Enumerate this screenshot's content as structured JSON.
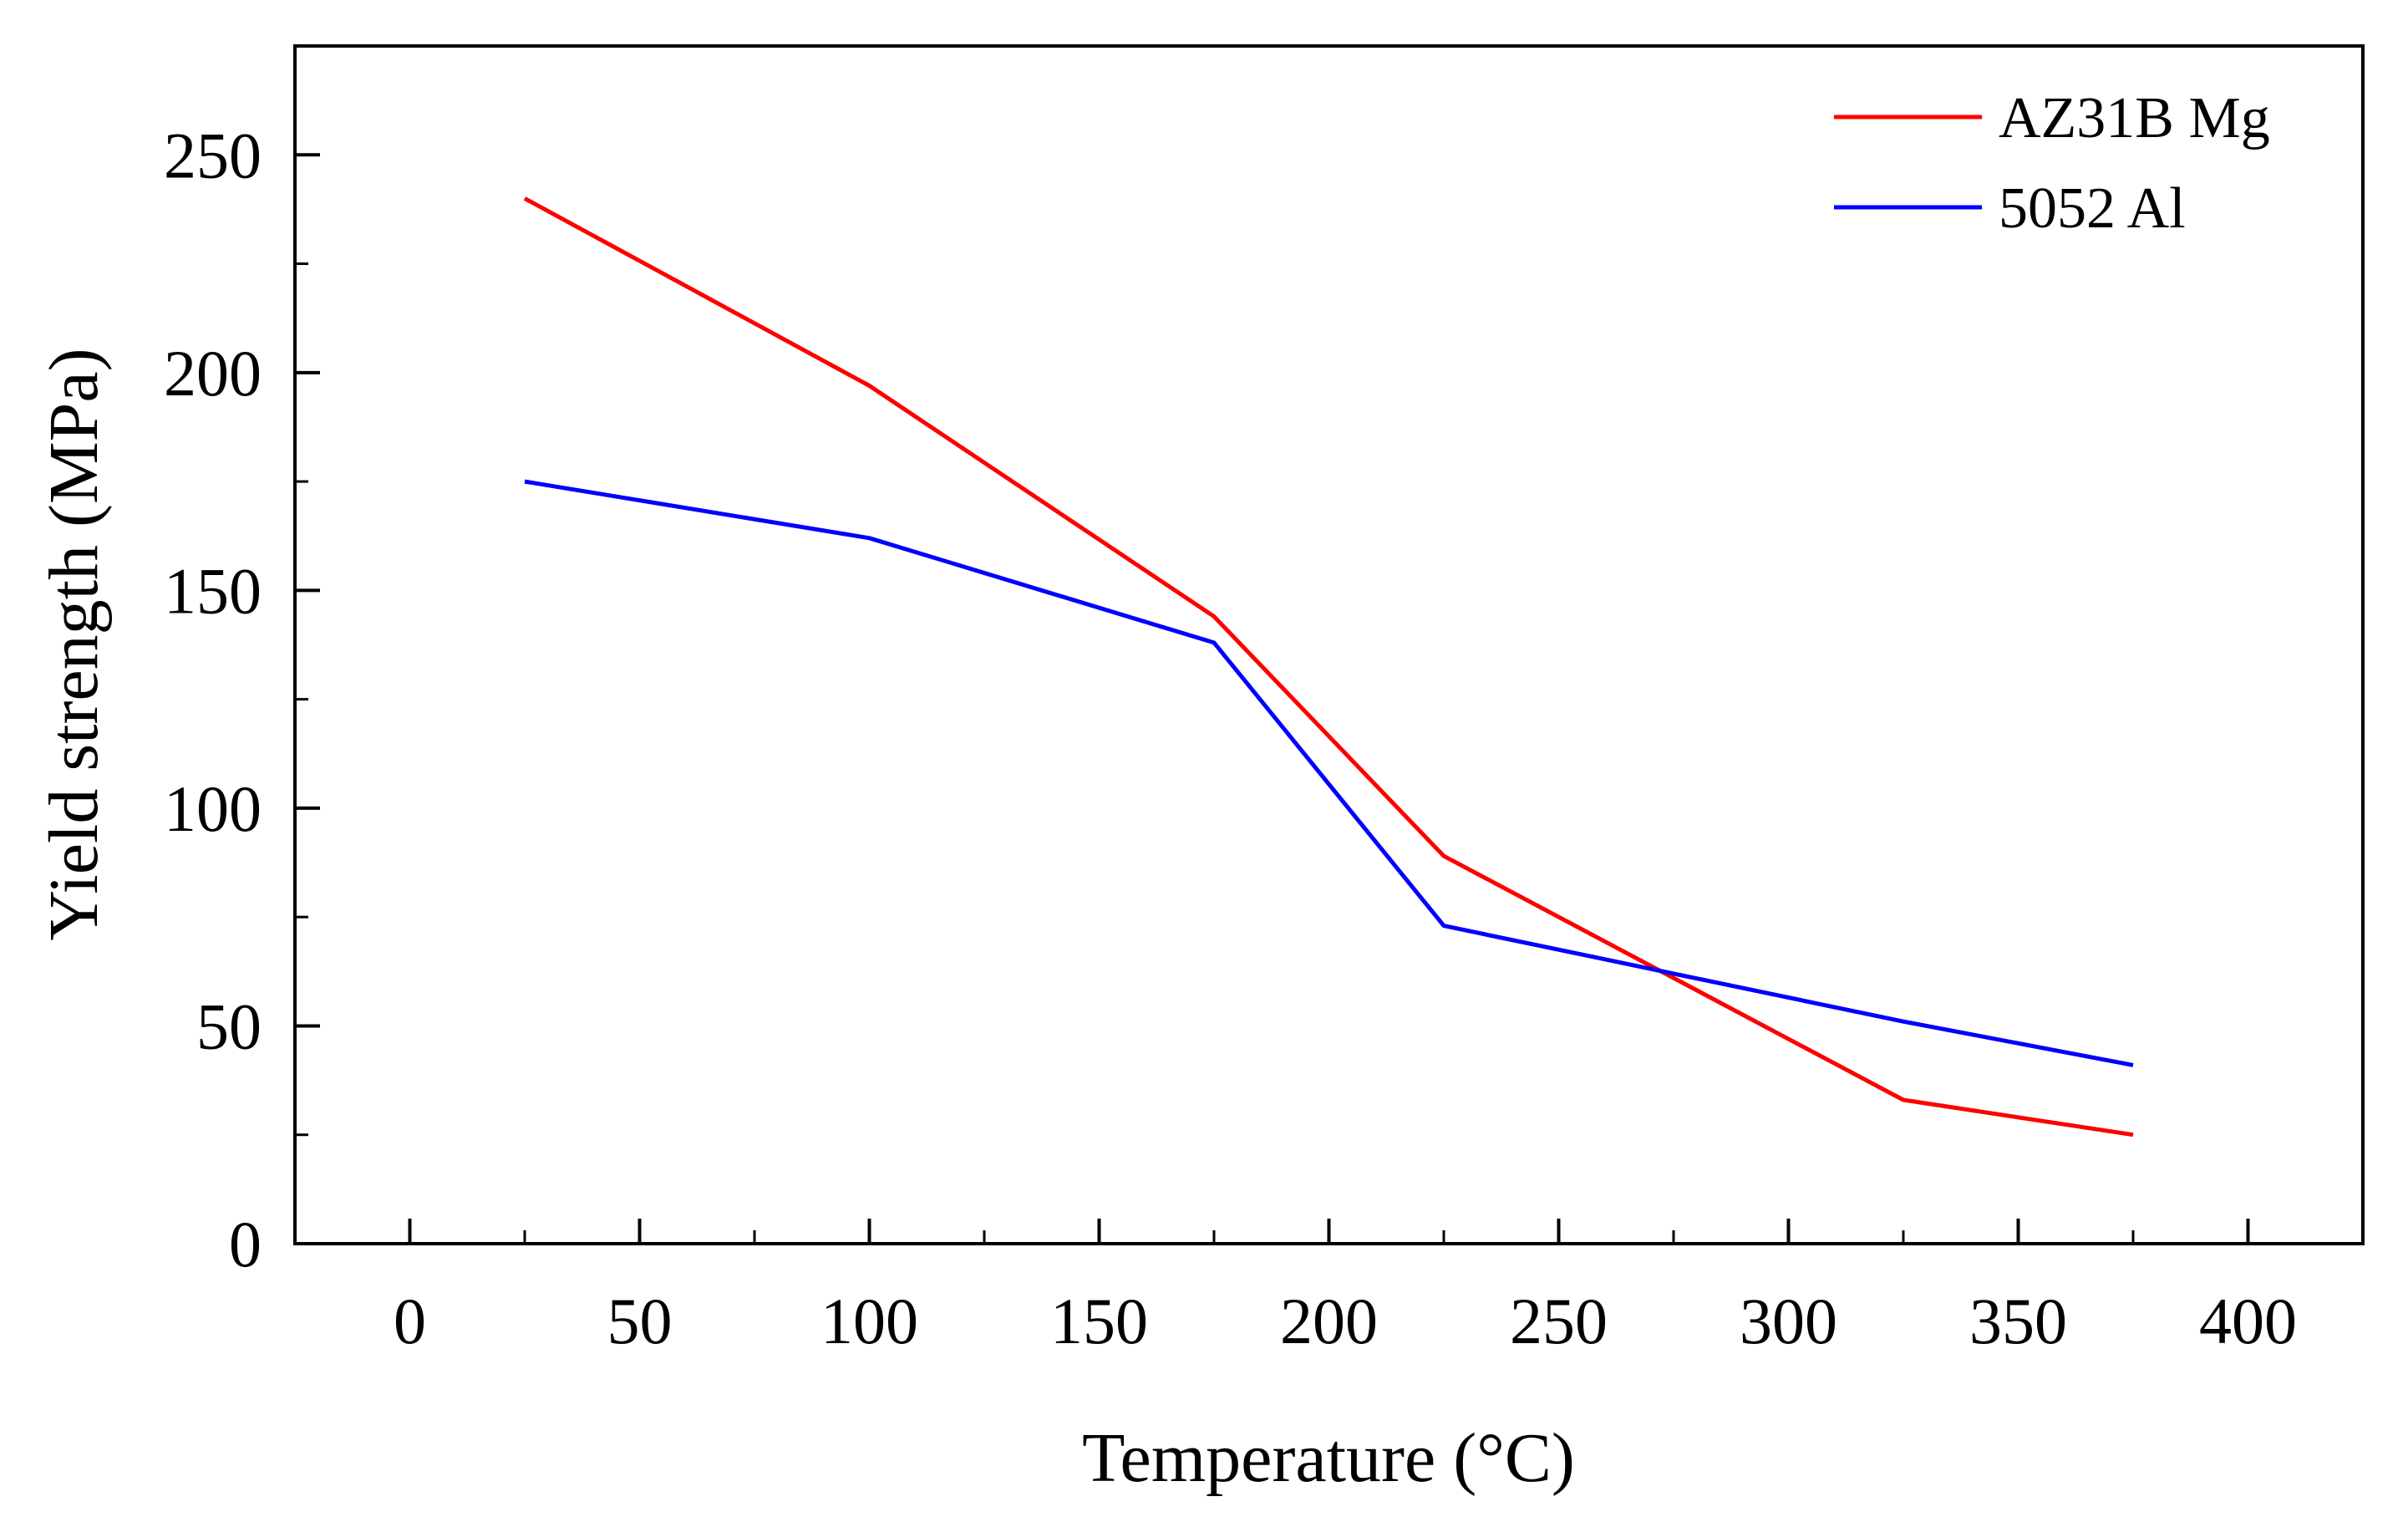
{
  "chart_data": {
    "type": "line",
    "title": "",
    "xlabel": "Temperature (°C)",
    "ylabel": "Yield strength (MPa)",
    "xlim": [
      -25,
      425
    ],
    "ylim": [
      0,
      275
    ],
    "xticks": [
      0,
      50,
      100,
      150,
      200,
      250,
      300,
      350,
      400
    ],
    "yticks": [
      0,
      50,
      100,
      150,
      200,
      250
    ],
    "xtick_labels": [
      "0",
      "50",
      "100",
      "150",
      "200",
      "250",
      "300",
      "350",
      "400"
    ],
    "ytick_labels": [
      "0",
      "50",
      "100",
      "150",
      "200",
      "250"
    ],
    "grid": false,
    "legend_position": "top-right",
    "series": [
      {
        "name": "AZ31B Mg",
        "color": "#ff0000",
        "x": [
          25,
          100,
          175,
          225,
          325,
          375
        ],
        "y": [
          240,
          197,
          144,
          89,
          33,
          25
        ]
      },
      {
        "name": "5052 Al",
        "color": "#0000ff",
        "x": [
          25,
          100,
          175,
          225,
          325,
          375
        ],
        "y": [
          175,
          162,
          138,
          73,
          51,
          41
        ]
      }
    ]
  }
}
